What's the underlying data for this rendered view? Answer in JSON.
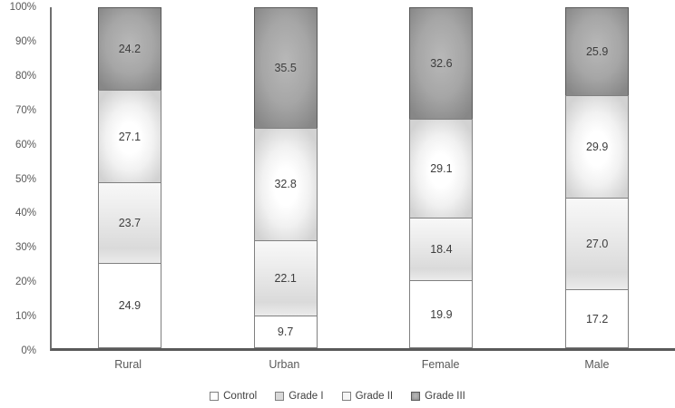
{
  "chart_data": {
    "type": "bar",
    "subtype": "100-percent-stacked-column",
    "title": "",
    "xlabel": "",
    "ylabel": "",
    "categories": [
      "Rural",
      "Urban",
      "Female",
      "Male"
    ],
    "series": [
      {
        "name": "Control",
        "values": [
          24.9,
          9.7,
          19.9,
          17.2
        ]
      },
      {
        "name": "Grade I",
        "values": [
          23.7,
          22.1,
          18.4,
          27.0
        ]
      },
      {
        "name": "Grade II",
        "values": [
          27.1,
          32.8,
          29.1,
          29.9
        ]
      },
      {
        "name": "Grade III",
        "values": [
          24.2,
          35.5,
          32.6,
          25.9
        ]
      }
    ],
    "y_ticks": [
      "0%",
      "10%",
      "20%",
      "30%",
      "40%",
      "50%",
      "60%",
      "70%",
      "80%",
      "90%",
      "100%"
    ],
    "ylim": [
      0,
      100
    ],
    "grid": false,
    "legend_position": "bottom",
    "legend": [
      "Control",
      "Grade I",
      "Grade II",
      "Grade III"
    ],
    "value_label_decimals": 1,
    "colors": {
      "control_fill": "#ffffff",
      "grade1_fill": "#dadada",
      "grade2_fill_center": "#ffffff",
      "grade2_fill_edge": "#d2d2d2",
      "grade3_fill_center": "#b8b8b8",
      "grade3_fill_edge": "#878787",
      "segment_border": "#808080",
      "grade3_border": "#595959",
      "axis_line": "#595959",
      "tick_text": "#595959",
      "value_text": "#3d3d3d"
    }
  }
}
